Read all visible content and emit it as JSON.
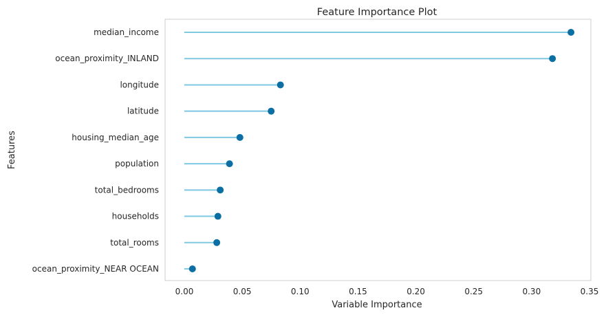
{
  "chart_data": {
    "type": "lollipop",
    "title": "Feature Importance Plot",
    "xlabel": "Variable Importance",
    "ylabel": "Features",
    "xlim": [
      -0.015,
      0.35
    ],
    "grid": false,
    "xticks": [
      "0.00",
      "0.05",
      "0.10",
      "0.15",
      "0.20",
      "0.25",
      "0.30",
      "0.35"
    ],
    "xtick_values": [
      0.0,
      0.05,
      0.1,
      0.15,
      0.2,
      0.25,
      0.3,
      0.35
    ],
    "categories": [
      "median_income",
      "ocean_proximity_INLAND",
      "longitude",
      "latitude",
      "housing_median_age",
      "population",
      "total_bedrooms",
      "households",
      "total_rooms",
      "ocean_proximity_NEAR OCEAN"
    ],
    "values": [
      0.334,
      0.318,
      0.083,
      0.075,
      0.048,
      0.039,
      0.031,
      0.029,
      0.028,
      0.007
    ],
    "colors": {
      "stem": "#7ec8e3",
      "dot": "#0b6fa4",
      "frame": "#cccccc"
    }
  }
}
